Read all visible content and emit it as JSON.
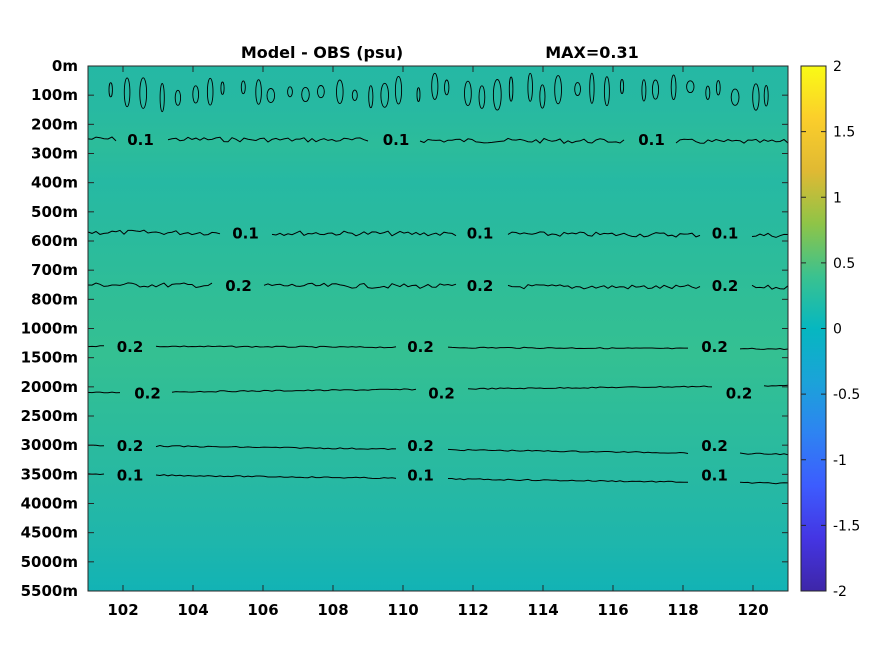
{
  "chart_data": {
    "type": "heatmap",
    "title_left": "Model - OBS (psu)",
    "title_right": "MAX=0.31",
    "xlabel": "",
    "ylabel": "",
    "x_range": [
      101,
      121
    ],
    "x_ticks": [
      "102",
      "104",
      "106",
      "108",
      "110",
      "112",
      "114",
      "116",
      "118",
      "120"
    ],
    "y_ticks": [
      "0m",
      "100m",
      "200m",
      "300m",
      "400m",
      "500m",
      "600m",
      "700m",
      "800m",
      "1000m",
      "1500m",
      "2000m",
      "2500m",
      "3000m",
      "3500m",
      "4000m",
      "4500m",
      "5000m",
      "5500m"
    ],
    "colorbar": {
      "range": [
        -2,
        2
      ],
      "ticks": [
        "2",
        "1.5",
        "1",
        "0.5",
        "0",
        "-0.5",
        "-1",
        "-1.5",
        "-2"
      ]
    },
    "contour_labels": [
      {
        "depth": "250m",
        "x": 102.5,
        "text": "0.1"
      },
      {
        "depth": "250m",
        "x": 109.8,
        "text": "0.1"
      },
      {
        "depth": "250m",
        "x": 117.1,
        "text": "0.1"
      },
      {
        "depth": "570m",
        "x": 105.5,
        "text": "0.1"
      },
      {
        "depth": "570m",
        "x": 112.2,
        "text": "0.1"
      },
      {
        "depth": "570m",
        "x": 119.2,
        "text": "0.1"
      },
      {
        "depth": "750m",
        "x": 105.3,
        "text": "0.2"
      },
      {
        "depth": "750m",
        "x": 112.2,
        "text": "0.2"
      },
      {
        "depth": "750m",
        "x": 119.2,
        "text": "0.2"
      },
      {
        "depth": "1300m",
        "x": 102.2,
        "text": "0.2"
      },
      {
        "depth": "1300m",
        "x": 110.5,
        "text": "0.2"
      },
      {
        "depth": "1300m",
        "x": 118.9,
        "text": "0.2"
      },
      {
        "depth": "2100m",
        "x": 102.7,
        "text": "0.2"
      },
      {
        "depth": "2100m",
        "x": 111.1,
        "text": "0.2"
      },
      {
        "depth": "2100m",
        "x": 119.6,
        "text": "0.2"
      },
      {
        "depth": "3000m",
        "x": 102.2,
        "text": "0.2"
      },
      {
        "depth": "3000m",
        "x": 110.5,
        "text": "0.2"
      },
      {
        "depth": "3000m",
        "x": 118.9,
        "text": "0.2"
      },
      {
        "depth": "3500m",
        "x": 102.2,
        "text": "0.1"
      },
      {
        "depth": "3500m",
        "x": 110.5,
        "text": "0.1"
      },
      {
        "depth": "3500m",
        "x": 118.9,
        "text": "0.1"
      }
    ]
  }
}
